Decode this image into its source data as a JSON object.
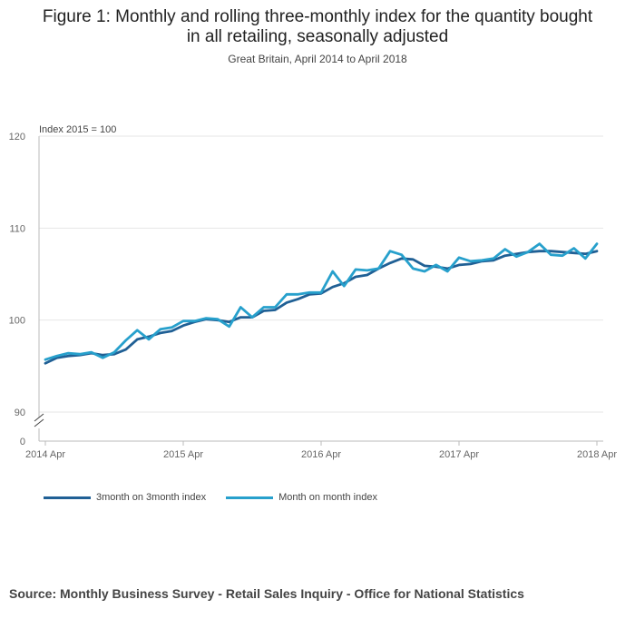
{
  "header": {
    "title_line1": "Figure 1: Monthly and rolling three-monthly index for the quantity bought",
    "title_line2": "in all retailing, seasonally adjusted",
    "subtitle": "Great Britain, April 2014 to April 2018"
  },
  "source": "Source: Monthly Business Survey - Retail Sales Inquiry - Office for National Statistics",
  "colors": {
    "three_month": "#206095",
    "monthly": "#27a0cc",
    "grid": "#e6e6e6",
    "axis": "#bbbbbb"
  },
  "chart_data": {
    "type": "line",
    "title": "Figure 1: Monthly and rolling three-monthly index for the quantity bought in all retailing, seasonally adjusted",
    "ylabel": "Index 2015 = 100",
    "xlabel": "",
    "ylim": [
      90,
      120
    ],
    "y_ticks": [
      120,
      110,
      100,
      90
    ],
    "y_break_label": "0",
    "x_ticks": [
      {
        "index": 0,
        "label": "2014 Apr"
      },
      {
        "index": 12,
        "label": "2015 Apr"
      },
      {
        "index": 24,
        "label": "2016 Apr"
      },
      {
        "index": 36,
        "label": "2017 Apr"
      },
      {
        "index": 48,
        "label": "2018 Apr"
      }
    ],
    "x": [
      "2014 Apr",
      "2014 May",
      "2014 Jun",
      "2014 Jul",
      "2014 Aug",
      "2014 Sep",
      "2014 Oct",
      "2014 Nov",
      "2014 Dec",
      "2015 Jan",
      "2015 Feb",
      "2015 Mar",
      "2015 Apr",
      "2015 May",
      "2015 Jun",
      "2015 Jul",
      "2015 Aug",
      "2015 Sep",
      "2015 Oct",
      "2015 Nov",
      "2015 Dec",
      "2016 Jan",
      "2016 Feb",
      "2016 Mar",
      "2016 Apr",
      "2016 May",
      "2016 Jun",
      "2016 Jul",
      "2016 Aug",
      "2016 Sep",
      "2016 Oct",
      "2016 Nov",
      "2016 Dec",
      "2017 Jan",
      "2017 Feb",
      "2017 Mar",
      "2017 Apr",
      "2017 May",
      "2017 Jun",
      "2017 Jul",
      "2017 Aug",
      "2017 Sep",
      "2017 Oct",
      "2017 Nov",
      "2017 Dec",
      "2018 Jan",
      "2018 Feb",
      "2018 Mar",
      "2018 Apr"
    ],
    "series": [
      {
        "name": "3month on 3month index",
        "values": [
          95.3,
          95.9,
          96.1,
          96.2,
          96.4,
          96.2,
          96.3,
          96.8,
          97.9,
          98.2,
          98.6,
          98.8,
          99.4,
          99.8,
          100.1,
          100.0,
          99.8,
          100.3,
          100.3,
          101.0,
          101.1,
          101.9,
          102.3,
          102.8,
          102.9,
          103.6,
          104.0,
          104.7,
          104.9,
          105.6,
          106.2,
          106.7,
          106.6,
          105.9,
          105.8,
          105.6,
          106.0,
          106.1,
          106.4,
          106.5,
          107.0,
          107.2,
          107.4,
          107.5,
          107.5,
          107.4,
          107.3,
          107.2,
          107.5
        ]
      },
      {
        "name": "Month on month index",
        "values": [
          95.7,
          96.1,
          96.4,
          96.3,
          96.5,
          95.9,
          96.5,
          97.8,
          98.9,
          97.9,
          99.0,
          99.2,
          99.9,
          99.9,
          100.2,
          100.1,
          99.3,
          101.4,
          100.3,
          101.4,
          101.4,
          102.8,
          102.8,
          103.0,
          103.0,
          105.3,
          103.7,
          105.5,
          105.4,
          105.6,
          107.5,
          107.1,
          105.6,
          105.3,
          106.0,
          105.3,
          106.8,
          106.4,
          106.5,
          106.7,
          107.7,
          106.9,
          107.4,
          108.3,
          107.1,
          107.0,
          107.8,
          106.7,
          108.3
        ]
      }
    ]
  }
}
